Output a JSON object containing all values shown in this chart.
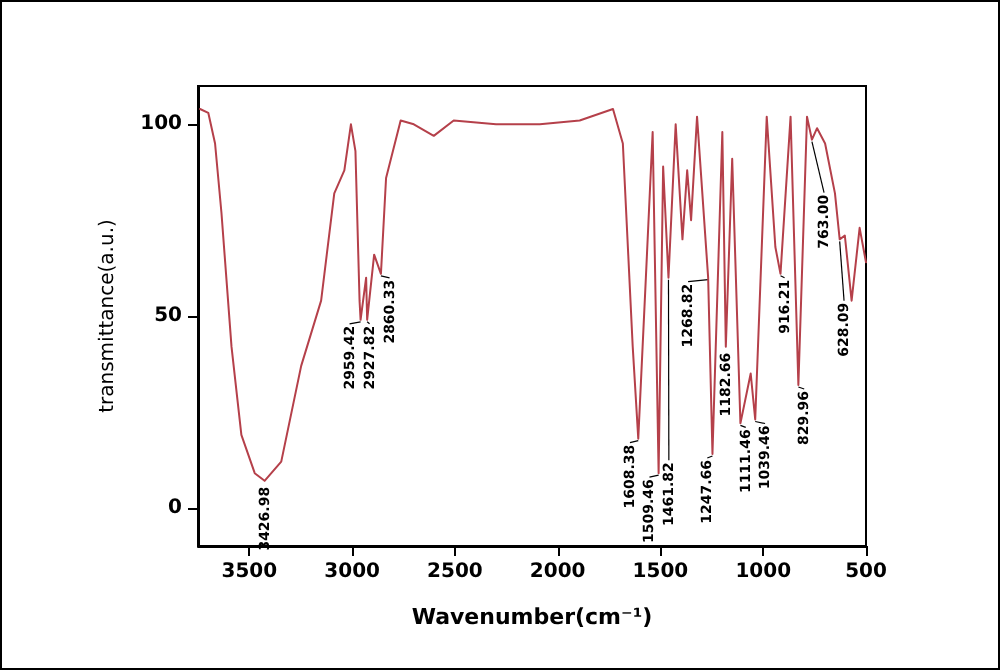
{
  "chart_data": {
    "type": "line",
    "xlabel": "Wavenumber(cm⁻¹)",
    "ylabel": "transmittance(a.u.)",
    "x": [
      3740,
      3700,
      3667,
      3636,
      3587,
      3539,
      3474,
      3426,
      3345,
      3248,
      3151,
      3087,
      3038,
      3006,
      2984,
      2964,
      2959,
      2932,
      2927,
      2893,
      2860,
      2835,
      2764,
      2700,
      2603,
      2506,
      2300,
      2087,
      1893,
      1731,
      1683,
      1635,
      1608,
      1571,
      1538,
      1509,
      1487,
      1461,
      1426,
      1393,
      1370,
      1351,
      1322,
      1268,
      1247,
      1199,
      1182,
      1151,
      1111,
      1061,
      1039,
      983,
      941,
      916,
      867,
      829,
      787,
      763,
      738,
      699,
      651,
      628,
      603,
      570,
      531,
      500
    ],
    "series": [
      {
        "color": "#b5404a",
        "values": [
          104,
          103,
          95,
          77,
          42,
          19,
          9,
          7,
          12,
          37,
          54,
          82,
          88,
          100,
          93,
          54,
          49,
          60,
          49,
          66,
          61,
          86,
          101,
          100,
          97,
          101,
          100,
          100,
          101,
          104,
          95,
          42,
          18,
          60,
          98,
          9,
          89,
          60,
          100,
          70,
          88,
          75,
          102,
          60,
          14,
          98,
          42,
          91,
          22,
          35,
          23,
          102,
          68,
          61,
          102,
          32,
          102,
          96,
          99,
          95,
          82,
          70,
          71,
          54,
          73,
          64
        ]
      }
    ],
    "xlim": [
      3750,
      500
    ],
    "xticks": [
      3500,
      3000,
      2500,
      2000,
      1500,
      1000,
      500
    ],
    "ylim": [
      -10,
      110
    ],
    "yticks": [
      0,
      50,
      100
    ],
    "grid": false,
    "marker": "none",
    "line_style": "solid",
    "annotations": [
      {
        "text": "3426.98",
        "x": 3426,
        "y": 7
      },
      {
        "text": "2959.42",
        "x": 2959,
        "y": 49
      },
      {
        "text": "2927.82",
        "x": 2927,
        "y": 49
      },
      {
        "text": "2860.33",
        "x": 2860,
        "y": 61
      },
      {
        "text": "1608.38",
        "x": 1608,
        "y": 18
      },
      {
        "text": "1509.46",
        "x": 1509,
        "y": 9
      },
      {
        "text": "1461.82",
        "x": 1461,
        "y": 60
      },
      {
        "text": "1268.82",
        "x": 1268,
        "y": 60
      },
      {
        "text": "1247.66",
        "x": 1247,
        "y": 14
      },
      {
        "text": "1182.66",
        "x": 1182,
        "y": 42
      },
      {
        "text": "1111.46",
        "x": 1111,
        "y": 22
      },
      {
        "text": "1039.46",
        "x": 1039,
        "y": 23
      },
      {
        "text": "916.21",
        "x": 916,
        "y": 61
      },
      {
        "text": "829.96",
        "x": 829,
        "y": 32
      },
      {
        "text": "763.00",
        "x": 763,
        "y": 96
      },
      {
        "text": "628.09",
        "x": 628,
        "y": 70
      }
    ]
  }
}
